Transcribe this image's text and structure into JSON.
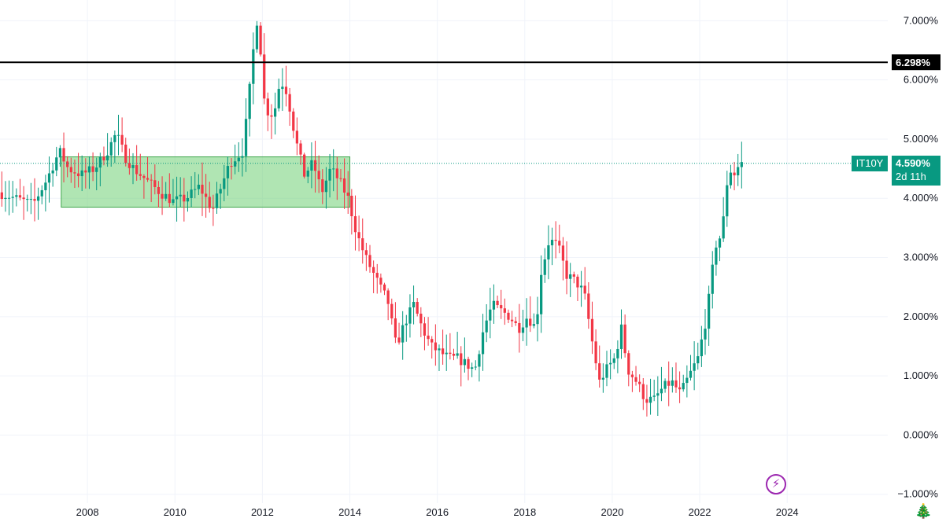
{
  "chart_data": {
    "type": "candlestick",
    "symbol": "IT10Y",
    "timeframe_note": "monthly candles",
    "y_axis": {
      "unit": "%",
      "range": [
        -1.15,
        7.35
      ],
      "ticks": [
        "7.000%",
        "6.000%",
        "5.000%",
        "4.000%",
        "3.000%",
        "2.000%",
        "1.000%",
        "0.000%",
        "−1.000%"
      ],
      "tick_values": [
        7,
        6,
        5,
        4,
        3,
        2,
        1,
        0,
        -1
      ]
    },
    "x_axis": {
      "range": [
        2006.0,
        2026.3
      ],
      "ticks": [
        "2008",
        "2010",
        "2012",
        "2014",
        "2016",
        "2018",
        "2020",
        "2022",
        "2024"
      ],
      "tick_values": [
        2008,
        2010,
        2012,
        2014,
        2016,
        2018,
        2020,
        2022,
        2024
      ]
    },
    "grid": true,
    "horizontal_line": {
      "value": 6.298,
      "label": "6.298%",
      "color": "#000000"
    },
    "last_price": {
      "value": 4.59,
      "label": "4.590%",
      "countdown": "2d 11h",
      "symbol_label": "IT10Y",
      "color": "#089981"
    },
    "zone": {
      "x_start": 2007.4,
      "x_end": 2014.0,
      "y_low": 3.85,
      "y_high": 4.7,
      "color": "#6fcf75"
    },
    "colors": {
      "up": "#089981",
      "down": "#f23645",
      "grid": "#f0f3fa"
    },
    "series_anchors": [
      [
        2006.0,
        4.1
      ],
      [
        2006.4,
        4.0
      ],
      [
        2006.8,
        3.9
      ],
      [
        2007.1,
        4.3
      ],
      [
        2007.4,
        4.8
      ],
      [
        2007.6,
        4.5
      ],
      [
        2007.9,
        4.4
      ],
      [
        2008.2,
        4.5
      ],
      [
        2008.5,
        4.8
      ],
      [
        2008.7,
        5.1
      ],
      [
        2008.9,
        4.7
      ],
      [
        2009.1,
        4.5
      ],
      [
        2009.4,
        4.3
      ],
      [
        2009.7,
        4.1
      ],
      [
        2010.0,
        3.95
      ],
      [
        2010.3,
        4.0
      ],
      [
        2010.6,
        4.2
      ],
      [
        2010.9,
        3.8
      ],
      [
        2011.1,
        4.2
      ],
      [
        2011.3,
        4.6
      ],
      [
        2011.6,
        4.8
      ],
      [
        2011.7,
        5.5
      ],
      [
        2011.8,
        6.2
      ],
      [
        2011.9,
        7.1
      ],
      [
        2012.0,
        6.5
      ],
      [
        2012.1,
        5.5
      ],
      [
        2012.3,
        5.4
      ],
      [
        2012.45,
        6.0
      ],
      [
        2012.6,
        5.8
      ],
      [
        2012.8,
        5.0
      ],
      [
        2013.0,
        4.4
      ],
      [
        2013.2,
        4.6
      ],
      [
        2013.4,
        4.1
      ],
      [
        2013.6,
        4.5
      ],
      [
        2013.8,
        4.3
      ],
      [
        2014.0,
        4.0
      ],
      [
        2014.2,
        3.4
      ],
      [
        2014.4,
        3.0
      ],
      [
        2014.6,
        2.7
      ],
      [
        2014.8,
        2.4
      ],
      [
        2014.9,
        2.3
      ],
      [
        2015.1,
        1.5
      ],
      [
        2015.3,
        1.9
      ],
      [
        2015.5,
        2.2
      ],
      [
        2015.7,
        1.8
      ],
      [
        2015.9,
        1.5
      ],
      [
        2016.1,
        1.4
      ],
      [
        2016.3,
        1.3
      ],
      [
        2016.5,
        1.3
      ],
      [
        2016.7,
        1.2
      ],
      [
        2016.9,
        1.1
      ],
      [
        2017.1,
        1.8
      ],
      [
        2017.3,
        2.2
      ],
      [
        2017.5,
        2.1
      ],
      [
        2017.7,
        2.0
      ],
      [
        2017.9,
        1.8
      ],
      [
        2018.1,
        2.0
      ],
      [
        2018.3,
        1.8
      ],
      [
        2018.4,
        2.7
      ],
      [
        2018.6,
        3.3
      ],
      [
        2018.8,
        3.2
      ],
      [
        2019.0,
        2.7
      ],
      [
        2019.2,
        2.6
      ],
      [
        2019.4,
        2.4
      ],
      [
        2019.6,
        1.5
      ],
      [
        2019.75,
        0.9
      ],
      [
        2019.9,
        1.1
      ],
      [
        2020.1,
        1.3
      ],
      [
        2020.25,
        1.8
      ],
      [
        2020.4,
        1.1
      ],
      [
        2020.6,
        0.9
      ],
      [
        2020.8,
        0.6
      ],
      [
        2021.0,
        0.6
      ],
      [
        2021.2,
        0.8
      ],
      [
        2021.4,
        0.9
      ],
      [
        2021.6,
        0.7
      ],
      [
        2021.8,
        1.0
      ],
      [
        2022.0,
        1.3
      ],
      [
        2022.2,
        2.0
      ],
      [
        2022.4,
        3.2
      ],
      [
        2022.55,
        3.4
      ],
      [
        2022.7,
        4.5
      ],
      [
        2022.85,
        4.4
      ],
      [
        2022.95,
        4.59
      ]
    ]
  }
}
